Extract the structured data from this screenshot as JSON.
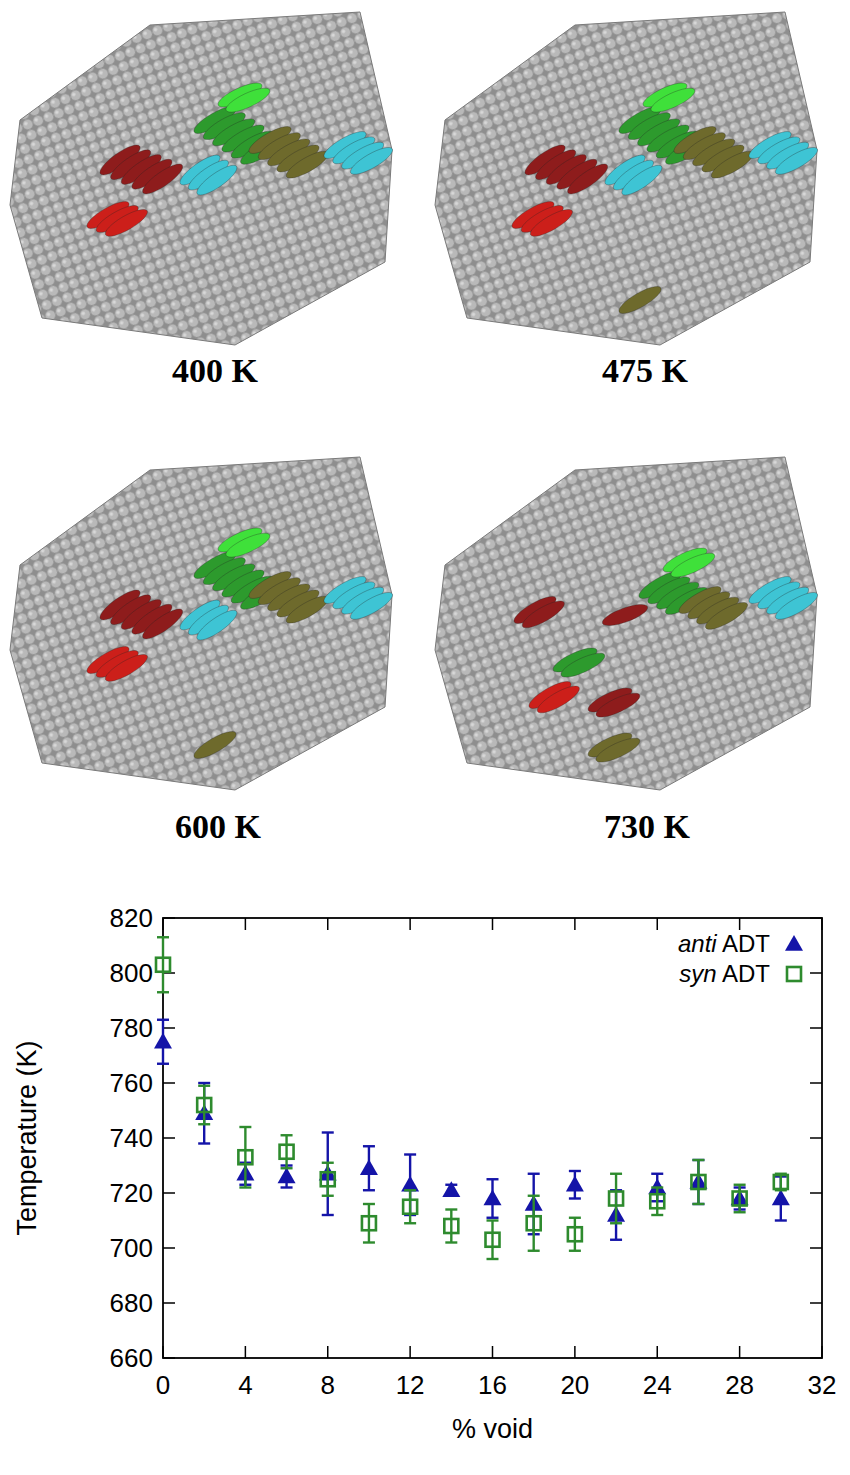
{
  "panels": [
    {
      "label": "400 K"
    },
    {
      "label": "475 K"
    },
    {
      "label": "600 K"
    },
    {
      "label": "730 K"
    }
  ],
  "chart_data": {
    "type": "scatter",
    "x_label": "% void",
    "y_label": "Temperature (K)",
    "xlim": [
      0,
      32
    ],
    "ylim": [
      660,
      820
    ],
    "xticks": [
      0,
      4,
      8,
      12,
      16,
      20,
      24,
      28,
      32
    ],
    "yticks": [
      660,
      680,
      700,
      720,
      740,
      760,
      780,
      800,
      820
    ],
    "grid": false,
    "legend": "top-right",
    "x": [
      0,
      2,
      4,
      6,
      8,
      10,
      12,
      14,
      16,
      18,
      20,
      22,
      24,
      26,
      28,
      30
    ],
    "series": [
      {
        "name": "anti ADT",
        "color": "#1414a8",
        "marker": "triangle",
        "values": [
          775,
          749,
          727,
          726,
          727,
          729,
          723,
          721,
          718,
          716,
          723,
          712,
          722,
          724,
          718,
          718
        ],
        "errors": [
          8,
          11,
          4,
          4,
          15,
          8,
          11,
          2,
          7,
          11,
          5,
          9,
          5,
          8,
          4,
          8
        ]
      },
      {
        "name": "syn ADT",
        "color": "#2e8b2e",
        "marker": "square",
        "values": [
          803,
          752,
          733,
          735,
          725,
          709,
          715,
          708,
          703,
          709,
          705,
          718,
          717,
          724,
          718,
          724
        ],
        "errors": [
          10,
          7,
          11,
          6,
          6,
          7,
          6,
          6,
          7,
          10,
          6,
          9,
          5,
          8,
          5,
          3
        ]
      }
    ]
  }
}
